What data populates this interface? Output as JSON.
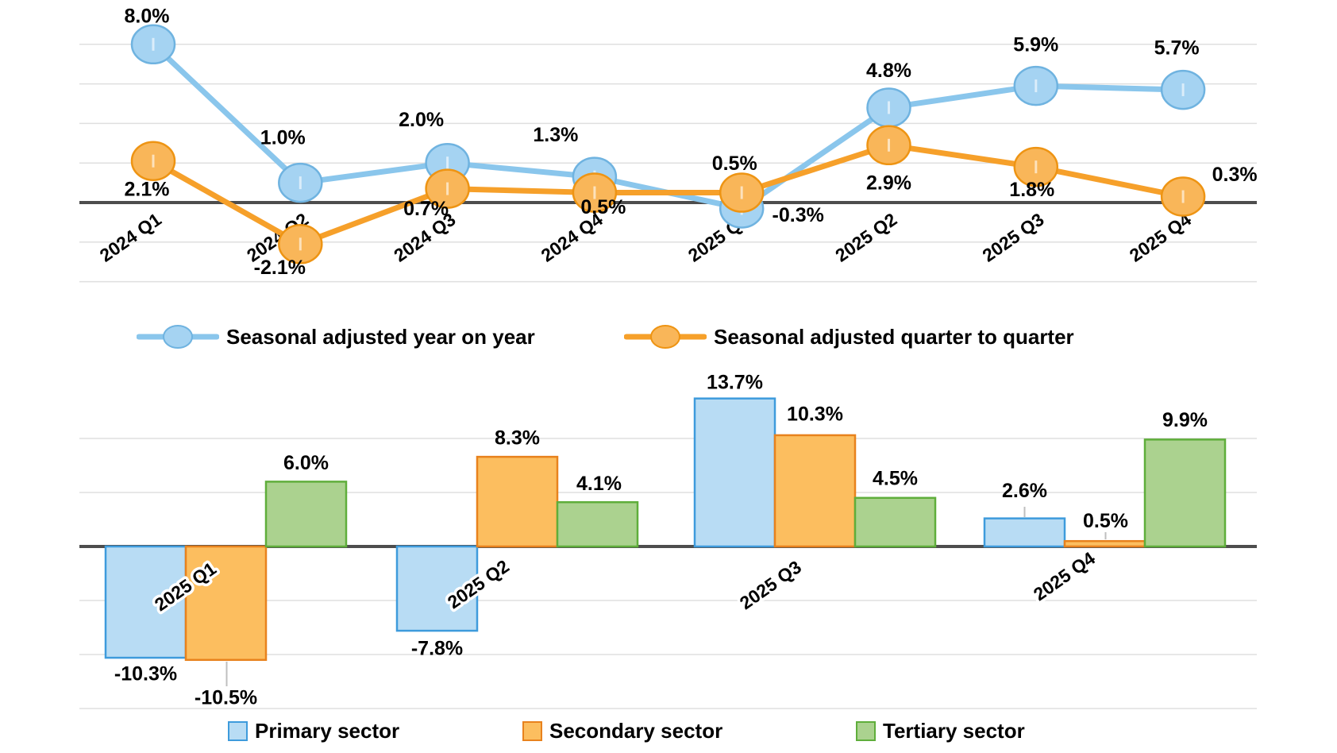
{
  "page": {
    "background": "#ffffff"
  },
  "colors": {
    "blue_line": "#8AC6EC",
    "blue_marker_fill": "#A5D3F2",
    "blue_marker_stroke": "#6FB3E0",
    "orange_line": "#F6A02A",
    "orange_marker_fill": "#F9B659",
    "orange_marker_stroke": "#EE9413",
    "bar_blue_fill": "#B8DCF4",
    "bar_blue_stroke": "#3E9BDC",
    "bar_orange_fill": "#FCBE5F",
    "bar_orange_stroke": "#E8821D",
    "bar_green_fill": "#ABD28F",
    "bar_green_stroke": "#5FAE3B",
    "axis": "#4D4D4D",
    "grid": "#DFDFDF",
    "leader": "#BFBFBF",
    "label_text": "#000000"
  },
  "chart_data": [
    {
      "type": "line",
      "title": "",
      "categories": [
        "2024 Q1",
        "2024 Q2",
        "2024 Q3",
        "2024 Q4",
        "2025 Q1",
        "2025 Q2",
        "2025 Q3",
        "2025 Q4"
      ],
      "series": [
        {
          "name": "Seasonal adjusted year on year",
          "color": "blue",
          "values": [
            8.0,
            1.0,
            2.0,
            1.3,
            -0.3,
            4.8,
            5.9,
            5.7
          ],
          "labels": [
            "8.0%",
            "1.0%",
            "2.0%",
            "1.3%",
            "-0.3%",
            "4.8%",
            "5.9%",
            "5.7%"
          ],
          "label_offsets": [
            [
              -8,
              -34
            ],
            [
              -22,
              -55
            ],
            [
              -33,
              -53
            ],
            [
              -49,
              -51
            ],
            [
              71,
              10
            ],
            [
              0,
              -45
            ],
            [
              0,
              -50
            ],
            [
              -8,
              -51
            ]
          ]
        },
        {
          "name": "Seasonal adjusted quarter to quarter",
          "color": "orange",
          "values": [
            2.1,
            -2.1,
            0.7,
            0.5,
            0.5,
            2.9,
            1.8,
            0.3
          ],
          "labels": [
            "2.1%",
            "-2.1%",
            "0.7%",
            "0.5%",
            "0.5%",
            "2.9%",
            "1.8%",
            "0.3%"
          ],
          "label_offsets": [
            [
              -8,
              37
            ],
            [
              -26,
              31
            ],
            [
              -27,
              27
            ],
            [
              11,
              20
            ],
            [
              -9,
              -35
            ],
            [
              0,
              49
            ],
            [
              -5,
              30
            ],
            [
              65,
              -26
            ]
          ]
        }
      ],
      "ylim": [
        -4.6,
        9.2
      ],
      "grid": "horizontal",
      "gridline_values_pct": [
        8,
        6,
        4,
        2,
        -2,
        -4
      ],
      "legend_position": "bottom"
    },
    {
      "type": "bar",
      "title": "",
      "categories": [
        "2025 Q1",
        "2025 Q2",
        "2025 Q3",
        "2025 Q4"
      ],
      "series": [
        {
          "name": "Primary sector",
          "color": "bar_blue",
          "values": [
            -10.3,
            -7.8,
            13.7,
            2.6
          ],
          "labels": [
            "-10.3%",
            "-7.8%",
            "13.7%",
            "2.6%"
          ],
          "label_offsets": [
            [
              0,
              22
            ],
            [
              0,
              24
            ],
            [
              0,
              -19
            ],
            [
              0,
              -33
            ]
          ]
        },
        {
          "name": "Secondary sector",
          "color": "bar_orange",
          "values": [
            -10.5,
            8.3,
            10.3,
            0.5
          ],
          "labels": [
            "-10.5%",
            "8.3%",
            "10.3%",
            "0.5%"
          ],
          "label_offsets": [
            [
              0,
              49
            ],
            [
              0,
              -22
            ],
            [
              0,
              -25
            ],
            [
              1,
              -24
            ]
          ]
        },
        {
          "name": "Tertiary sector",
          "color": "bar_green",
          "values": [
            6.0,
            4.1,
            4.5,
            9.9
          ],
          "labels": [
            "6.0%",
            "4.1%",
            "4.5%",
            "9.9%"
          ],
          "label_offsets": [
            [
              0,
              -22
            ],
            [
              2,
              -22
            ],
            [
              0,
              -23
            ],
            [
              0,
              -23
            ]
          ]
        }
      ],
      "ylim": [
        -15,
        15
      ],
      "grid": "horizontal",
      "gridline_values_pct": [
        10,
        5,
        -5,
        -10,
        -15
      ],
      "legend_position": "bottom"
    }
  ]
}
